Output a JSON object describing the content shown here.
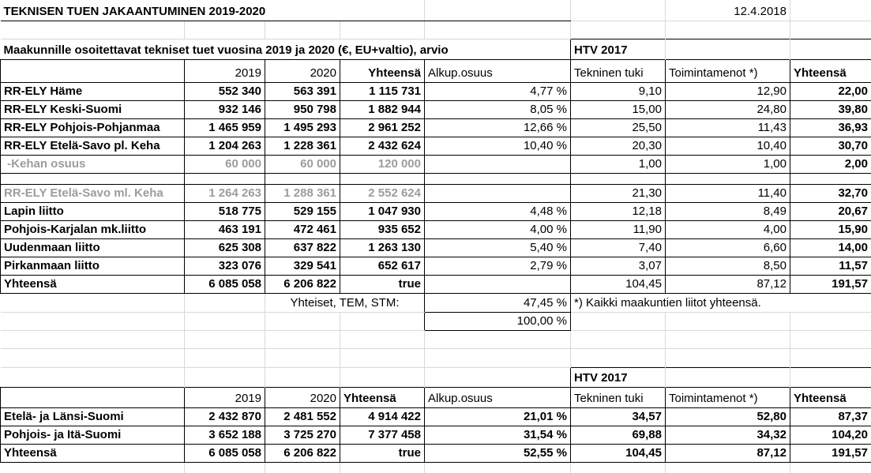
{
  "sheet": {
    "title": "TEKNISEN TUEN JAKAANTUMINEN 2019-2020",
    "date": "12.4.2018",
    "subtitle": "Maakunnille osoitettavat tekniset tuet vuosina 2019 ja 2020 (€, EU+valtio), arvio",
    "htv_header_top": "HTV 2017",
    "htv_header_bottom": "HTV 2017",
    "yhteiset_label": "Yhteiset, TEM, STM:",
    "yhteiset_share": "47,45 %",
    "yhteiset_total": "100,00 %",
    "footnote": "*) Kaikki maakuntien liitot yhteensä."
  },
  "columns": {
    "year1": "2019",
    "year2": "2020",
    "total": "Yhteensä",
    "share": "Alkup.osuus",
    "tech": "Tekninen tuki",
    "oper": "Toimintamenot *)",
    "htv_total": "Yhteensä"
  },
  "main_rows": [
    {
      "label": "RR-ELY Häme",
      "y1": "552 340",
      "y2": "563 391",
      "total": "1 115 731",
      "share": "4,77 %",
      "tech": "9,10",
      "oper": "12,90",
      "htv": "22,00"
    },
    {
      "label": "RR-ELY Keski-Suomi",
      "y1": "932 146",
      "y2": "950 798",
      "total": "1 882 944",
      "share": "8,05 %",
      "tech": "15,00",
      "oper": "24,80",
      "htv": "39,80"
    },
    {
      "label": "RR-ELY Pohjois-Pohjanmaa",
      "y1": "1 465 959",
      "y2": "1 495 293",
      "total": "2 961 252",
      "share": "12,66 %",
      "tech": "25,50",
      "oper": "11,43",
      "htv": "36,93"
    },
    {
      "label": "RR-ELY Etelä-Savo pl. Keha",
      "y1": "1 204 263",
      "y2": "1 228 361",
      "total": "2 432 624",
      "share": "10,40 %",
      "tech": "20,30",
      "oper": "10,40",
      "htv": "30,70"
    },
    {
      "label": " -Kehan osuus",
      "y1": "60 000",
      "y2": "60 000",
      "total": "120 000",
      "share": "",
      "tech": "1,00",
      "oper": "1,00",
      "htv": "2,00",
      "muted": true
    },
    {
      "spacer": true
    },
    {
      "label": "RR-ELY Etelä-Savo ml. Keha",
      "y1": "1 264 263",
      "y2": "1 288 361",
      "total": "2 552 624",
      "share": "",
      "tech": "21,30",
      "oper": "11,40",
      "htv": "32,70",
      "muted": true
    },
    {
      "label": "Lapin liitto",
      "y1": "518 775",
      "y2": "529 155",
      "total": "1 047 930",
      "share": "4,48 %",
      "tech": "12,18",
      "oper": "8,49",
      "htv": "20,67"
    },
    {
      "label": "Pohjois-Karjalan mk.liitto",
      "y1": "463 191",
      "y2": "472 461",
      "total": "935 652",
      "share": "4,00 %",
      "tech": "11,90",
      "oper": "4,00",
      "htv": "15,90"
    },
    {
      "label": "Uudenmaan liitto",
      "y1": "625 308",
      "y2": "637 822",
      "total": "1 263 130",
      "share": "5,40 %",
      "tech": "7,40",
      "oper": "6,60",
      "htv": "14,00"
    },
    {
      "label": "Pirkanmaan liitto",
      "y1": "323 076",
      "y2": "329 541",
      "total": "652 617",
      "share": "2,79 %",
      "tech": "3,07",
      "oper": "8,50",
      "htv": "11,57"
    },
    {
      "label": "Yhteensä",
      "y1": "6 085 058",
      "y2": "6 206 822",
      "total": true,
      "share": "",
      "tech": "104,45",
      "oper": "87,12",
      "htv": "191,57"
    }
  ],
  "bottom_rows": [
    {
      "label": "Etelä- ja Länsi-Suomi",
      "y1": "2 432 870",
      "y2": "2 481 552",
      "total": "4 914 422",
      "share": "21,01 %",
      "tech": "34,57",
      "oper": "52,80",
      "htv": "87,37"
    },
    {
      "label": "Pohjois- ja Itä-Suomi",
      "y1": "3 652 188",
      "y2": "3 725 270",
      "total": "7 377 458",
      "share": "31,54 %",
      "tech": "69,88",
      "oper": "34,32",
      "htv": "104,20"
    },
    {
      "label": "Yhteensä",
      "y1": "6 085 058",
      "y2": "6 206 822",
      "total": true,
      "share": "52,55 %",
      "tech": "104,45",
      "oper": "87,12",
      "htv": "191,57"
    }
  ]
}
